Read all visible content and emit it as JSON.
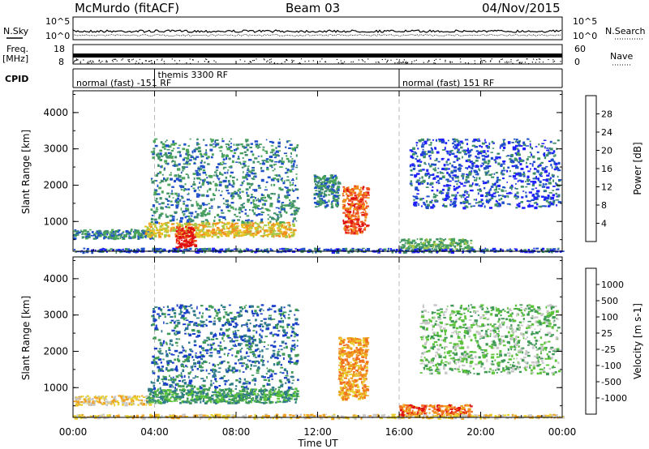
{
  "header": {
    "title": "McMurdo (fitACF)",
    "beam": "Beam 03",
    "date": "04/Nov/2015"
  },
  "status_panels": {
    "nsky_label": "N.Sky",
    "nsearch_label": "N.Search",
    "freq_label": "Freq.",
    "freq_unit": "[MHz]",
    "nave_label": "Nave",
    "cpid_label": "CPID",
    "noise_ticks": [
      "10^5",
      "10^0"
    ],
    "freq_ticks": [
      "18",
      "8"
    ],
    "nave_ticks": [
      "60",
      "0"
    ],
    "cpid_segments": [
      {
        "start_hour": 0,
        "label": "normal (fast) -151 RF"
      },
      {
        "start_hour": 4,
        "label": "themis 3300 RF"
      },
      {
        "start_hour": 16,
        "label": "normal (fast) 151 RF"
      }
    ]
  },
  "axes": {
    "x_ticks": [
      "00:00",
      "04:00",
      "08:00",
      "12:00",
      "16:00",
      "20:00",
      "00:00"
    ],
    "x_label": "Time UT",
    "y_label": "Slant Range [km]",
    "y_ticks": [
      "1000",
      "2000",
      "3000",
      "4000"
    ]
  },
  "chart_data": [
    {
      "type": "heatmap",
      "title": "",
      "xlabel": "Time UT",
      "ylabel": "Slant Range [km]",
      "xlim": [
        0,
        24
      ],
      "ylim": [
        180,
        4600
      ],
      "colorbar": {
        "label": "Power [dB]",
        "ticks": [
          "28",
          "24",
          "20",
          "16",
          "12",
          "8",
          "4"
        ],
        "colors": [
          "#1f1fff",
          "#2050c8",
          "#3f8f6a",
          "#4aa55a",
          "#a8c84a",
          "#e8c020",
          "#f09020",
          "#f05020",
          "#e01010"
        ]
      },
      "regions": [
        {
          "t_start": 0.0,
          "t_end": 3.9,
          "r_min": 550,
          "r_max": 800,
          "level": 2
        },
        {
          "t_start": 3.5,
          "t_end": 10.8,
          "r_min": 600,
          "r_max": 1000,
          "level": 5
        },
        {
          "t_start": 5.0,
          "t_end": 6.0,
          "r_min": 300,
          "r_max": 900,
          "level": 8
        },
        {
          "t_start": 3.8,
          "t_end": 11.0,
          "r_min": 1000,
          "r_max": 3300,
          "level": 2
        },
        {
          "t_start": 13.2,
          "t_end": 14.4,
          "r_min": 700,
          "r_max": 2000,
          "level": 7
        },
        {
          "t_start": 11.8,
          "t_end": 13.0,
          "r_min": 1400,
          "r_max": 2300,
          "level": 2
        },
        {
          "t_start": 16.0,
          "t_end": 19.5,
          "r_min": 250,
          "r_max": 550,
          "level": 3
        },
        {
          "t_start": 16.5,
          "t_end": 23.8,
          "r_min": 1400,
          "r_max": 3300,
          "level": 1
        },
        {
          "t_start": 0.0,
          "t_end": 24.0,
          "r_min": 180,
          "r_max": 280,
          "level": 1
        }
      ]
    },
    {
      "type": "heatmap",
      "title": "",
      "xlabel": "Time UT",
      "ylabel": "Slant Range [km]",
      "xlim": [
        0,
        24
      ],
      "ylim": [
        180,
        4600
      ],
      "colorbar": {
        "label": "Velocity [m s-1]",
        "ticks": [
          "1000",
          "500",
          "100",
          "25",
          "-25",
          "-100",
          "-500",
          "-1000"
        ],
        "colors": [
          "#1a3fc8",
          "#2e7a8a",
          "#3f9a55",
          "#5cc43a",
          "#c8c8c8",
          "#e8d030",
          "#f0a020",
          "#f07020",
          "#e01010"
        ]
      },
      "regions": [
        {
          "t_start": 0.0,
          "t_end": 3.9,
          "r_min": 550,
          "r_max": 800,
          "level": 5
        },
        {
          "t_start": 3.5,
          "t_end": 11.0,
          "r_min": 600,
          "r_max": 1000,
          "level": 2
        },
        {
          "t_start": 3.8,
          "t_end": 11.0,
          "r_min": 1000,
          "r_max": 3300,
          "level": 1
        },
        {
          "t_start": 13.0,
          "t_end": 14.4,
          "r_min": 700,
          "r_max": 2400,
          "level": 6
        },
        {
          "t_start": 16.0,
          "t_end": 19.5,
          "r_min": 250,
          "r_max": 550,
          "level": 7
        },
        {
          "t_start": 17.0,
          "t_end": 23.8,
          "r_min": 1400,
          "r_max": 3300,
          "level": 3
        },
        {
          "t_start": 0.0,
          "t_end": 24.0,
          "r_min": 180,
          "r_max": 280,
          "level": 5
        }
      ]
    }
  ]
}
